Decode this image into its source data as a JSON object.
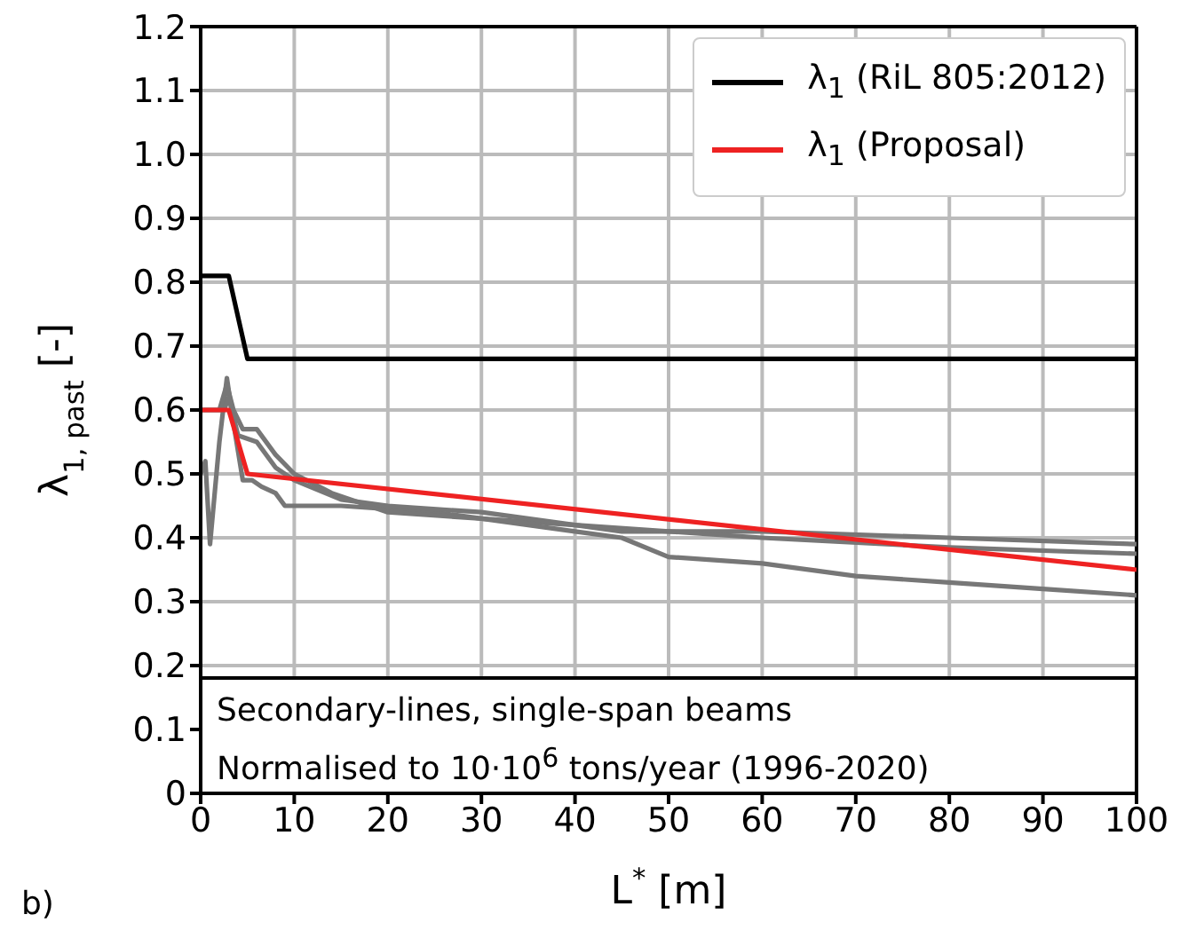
{
  "chart_data": {
    "type": "line",
    "xlabel": "L$^{*}$ [m]",
    "ylabel": "λ$_{1, past}$ [-]",
    "xlim": [
      0,
      100
    ],
    "xticks": [
      0,
      10,
      20,
      30,
      40,
      50,
      60,
      70,
      80,
      90,
      100
    ],
    "ylim": [
      0,
      1.2
    ],
    "yticks": [
      {
        "value": 0,
        "label": "0"
      },
      0.1,
      0.2,
      0.3,
      0.4,
      0.5,
      0.6,
      0.7,
      0.8,
      0.9,
      {
        "value": 1,
        "label": "1.0"
      },
      1.1,
      1.2
    ],
    "grid": true,
    "legend": "top right",
    "marker": "none",
    "line_style": "solid",
    "annotations": [
      "Secondary-lines, single-span beams",
      "Normalised to 10·10$^{6}$ tons/year (1996-2020)",
      "b)"
    ],
    "series": [
      {
        "color": "#777777",
        "x": [
          0,
          0.5,
          1,
          2,
          2.8,
          3.5,
          4.5,
          5.5,
          6.5,
          8,
          9,
          15,
          25,
          30,
          35,
          40,
          45,
          50,
          60,
          70,
          80,
          90,
          100
        ],
        "values": [
          0.5,
          0.52,
          0.39,
          0.55,
          0.65,
          0.58,
          0.49,
          0.49,
          0.48,
          0.47,
          0.45,
          0.45,
          0.44,
          0.43,
          0.42,
          0.41,
          0.4,
          0.37,
          0.36,
          0.34,
          0.33,
          0.32,
          0.31
        ]
      },
      {
        "color": "#777777",
        "x": [
          0,
          2,
          2.8,
          3.5,
          4.5,
          6,
          8,
          10,
          14,
          20,
          30,
          40,
          45,
          60,
          80,
          100
        ],
        "values": [
          0.6,
          0.6,
          0.64,
          0.6,
          0.57,
          0.57,
          0.53,
          0.5,
          0.47,
          0.44,
          0.43,
          0.42,
          0.41,
          0.41,
          0.4,
          0.39
        ]
      },
      {
        "color": "#777777",
        "x": [
          0,
          2.5,
          3,
          4,
          6,
          8,
          10,
          15,
          20,
          30,
          40,
          50,
          60,
          80,
          100
        ],
        "values": [
          0.6,
          0.6,
          0.62,
          0.56,
          0.55,
          0.51,
          0.49,
          0.46,
          0.45,
          0.44,
          0.42,
          0.41,
          0.4,
          0.385,
          0.375
        ]
      },
      {
        "name": "λ$_{1}$ (RiL 805:2012)",
        "color": "#000000",
        "x": [
          0,
          3,
          5,
          100
        ],
        "values": [
          0.81,
          0.81,
          0.68,
          0.68
        ]
      },
      {
        "name": "λ$_{1}$ (Proposal)",
        "color": "#ee2222",
        "x": [
          0,
          3,
          5,
          100
        ],
        "values": [
          0.6,
          0.6,
          0.5,
          0.35
        ]
      }
    ]
  }
}
